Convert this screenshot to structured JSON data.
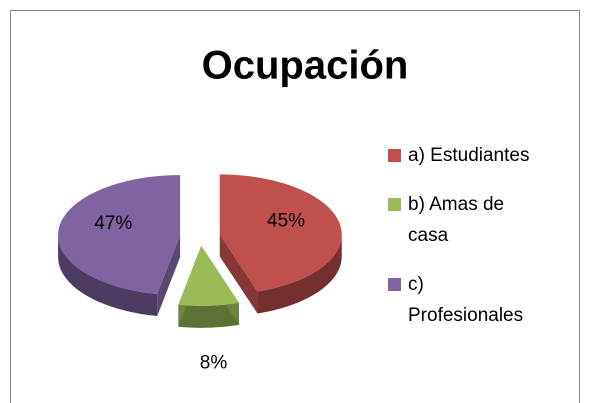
{
  "chart_data": {
    "type": "pie",
    "title": "Ocupación",
    "categories": [
      "a) Estudiantes",
      "b) Amas de casa",
      "c) Profesionales"
    ],
    "values": [
      45,
      8,
      47
    ],
    "value_labels": [
      "45%",
      "8%",
      "47%"
    ],
    "colors": [
      "#c0504d",
      "#9bbb59",
      "#8064a2"
    ],
    "legend": "right"
  }
}
